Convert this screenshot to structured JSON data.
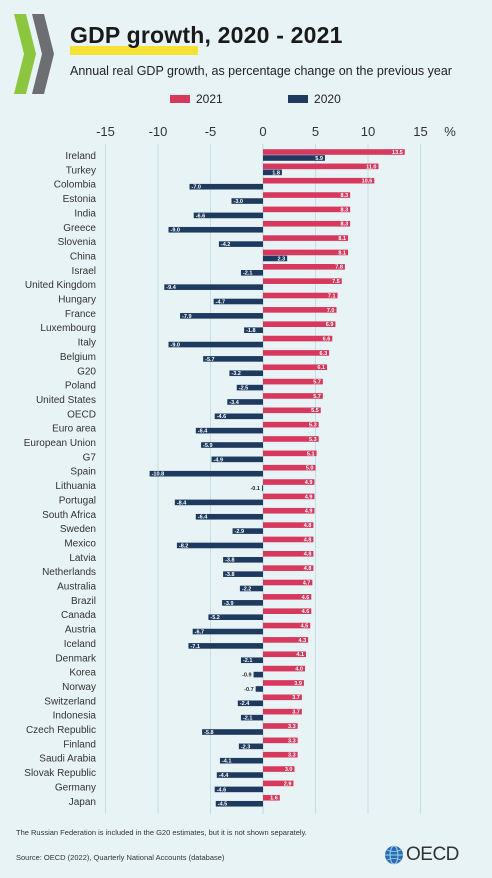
{
  "title": "GDP growth, 2020 - 2021",
  "subtitle": "Annual real GDP growth, as percentage change on the previous year",
  "footnote": "The Russian Federation is included in the G20 estimates, but it is not shown separately.",
  "source": "Source: OECD (2022), Quarterly National Accounts (database)",
  "brand": "OECD",
  "colors": {
    "s2021": "#d7385e",
    "s2020": "#1f3a5f",
    "background": "#e8f3f5",
    "grid": "#b9dbe0"
  },
  "chart_data": {
    "type": "bar",
    "orientation": "horizontal",
    "unit_label": "%",
    "xlim": [
      -15,
      15
    ],
    "ticks": [
      "-15",
      "-10",
      "-5",
      "0",
      "5",
      "10",
      "15"
    ],
    "tick_values": [
      -15,
      -10,
      -5,
      0,
      5,
      10,
      15
    ],
    "categories": [
      "Ireland",
      "Turkey",
      "Colombia",
      "Estonia",
      "India",
      "Greece",
      "Slovenia",
      "China",
      "Israel",
      "United Kingdom",
      "Hungary",
      "France",
      "Luxembourg",
      "Italy",
      "Belgium",
      "G20",
      "Poland",
      "United States",
      "OECD",
      "Euro area",
      "European Union",
      "G7",
      "Spain",
      "Lithuania",
      "Portugal",
      "South Africa",
      "Sweden",
      "Mexico",
      "Latvia",
      "Netherlands",
      "Australia",
      "Brazil",
      "Canada",
      "Austria",
      "Iceland",
      "Denmark",
      "Korea",
      "Norway",
      "Switzerland",
      "Indonesia",
      "Czech Republic",
      "Finland",
      "Saudi Arabia",
      "Slovak Republic",
      "Germany",
      "Japan"
    ],
    "series": [
      {
        "name": "2021",
        "values": [
          13.5,
          11.0,
          10.6,
          8.3,
          8.3,
          8.3,
          8.1,
          8.1,
          7.8,
          7.5,
          7.1,
          7.0,
          6.9,
          6.6,
          6.3,
          6.1,
          5.7,
          5.7,
          5.5,
          5.3,
          5.3,
          5.1,
          5.0,
          4.9,
          4.9,
          4.9,
          4.8,
          4.8,
          4.8,
          4.8,
          4.7,
          4.6,
          4.6,
          4.5,
          4.3,
          4.1,
          4.0,
          3.9,
          3.7,
          3.7,
          3.3,
          3.3,
          3.3,
          3.0,
          2.9,
          1.6
        ]
      },
      {
        "name": "2020",
        "values": [
          5.9,
          1.8,
          -7.0,
          -3.0,
          -6.6,
          -9.0,
          -4.2,
          2.3,
          -2.1,
          -9.4,
          -4.7,
          -7.9,
          -1.8,
          -9.0,
          -5.7,
          -3.2,
          -2.5,
          -3.4,
          -4.6,
          -6.4,
          -5.9,
          -4.9,
          -10.8,
          -0.1,
          -8.4,
          -6.4,
          -2.9,
          -8.2,
          -3.8,
          -3.8,
          -2.2,
          -3.9,
          -5.2,
          -6.7,
          -7.1,
          -2.1,
          -0.9,
          -0.7,
          -2.4,
          -2.1,
          -5.8,
          -2.3,
          -4.1,
          -4.4,
          -4.6,
          -4.5
        ]
      }
    ],
    "value_labels": {
      "2021": [
        "13.5",
        "11.0",
        "10.6",
        "8.3",
        "8.3",
        "8.3",
        "8.1",
        "8.1",
        "7.8",
        "7.5",
        "7.1",
        "7.0",
        "6.9",
        "6.6",
        "6.3",
        "6.1",
        "5.7",
        "5.7",
        "5.5",
        "5.3",
        "5.3",
        "5.1",
        "5.0",
        "4.9",
        "4.9",
        "4.9",
        "4.8",
        "4.8",
        "4.8",
        "4.8",
        "4.7",
        "4.6",
        "4.6",
        "4.5",
        "4.3",
        "4.1",
        "4.0",
        "3.9",
        "3.7",
        "3.7",
        "3.3",
        "3.3",
        "3.3",
        "3.0",
        "2.9",
        "1.6"
      ],
      "2020": [
        "5.9",
        "1.8",
        "-7.0",
        "-3.0",
        "-6.6",
        "-9.0",
        "-4.2",
        "2.3",
        "-2.1",
        "-9.4",
        "-4.7",
        "-7.9",
        "-1.8",
        "-9.0",
        "-5.7",
        "-3.2",
        "-2.5",
        "-3.4",
        "-4.6",
        "-6.4",
        "-5.9",
        "-4.9",
        "-10.8",
        "-0.1",
        "-8.4",
        "-6.4",
        "-2.9",
        "-8.2",
        "-3.8",
        "-3.8",
        "-2.2",
        "-3.9",
        "-5.2",
        "-6.7",
        "-7.1",
        "-2.1",
        "-0.9",
        "-0.7",
        "-2.4",
        "-2.1",
        "-5.8",
        "-2.3",
        "-4.1",
        "-4.4",
        "-4.6",
        "-4.5"
      ]
    },
    "legend_placement": "top",
    "grid": true
  }
}
